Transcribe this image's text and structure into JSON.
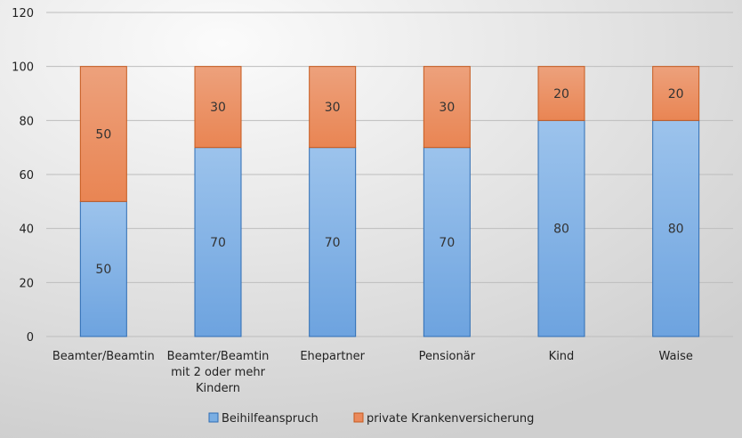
{
  "chart_data": {
    "type": "bar",
    "stacked": true,
    "categories": [
      [
        "Beamter/Beamtin"
      ],
      [
        "Beamter/Beamtin",
        "mit 2 oder mehr",
        "Kindern"
      ],
      [
        "Ehepartner"
      ],
      [
        "Pensionär"
      ],
      [
        "Kind"
      ],
      [
        "Waise"
      ]
    ],
    "series": [
      {
        "name": "Beihilfeanspruch",
        "values": [
          50,
          70,
          70,
          70,
          80,
          80
        ],
        "color": "#7aaee3",
        "stroke": "#2e6db4"
      },
      {
        "name": "private Krankenversicherung",
        "values": [
          50,
          30,
          30,
          30,
          20,
          20
        ],
        "color": "#eb8a5c",
        "stroke": "#c65a1e"
      }
    ],
    "ylim": [
      0,
      120
    ],
    "yticks": [
      0,
      20,
      40,
      60,
      80,
      100,
      120
    ],
    "grid": true,
    "legend": "bottom",
    "background": "#e6e6e6"
  }
}
